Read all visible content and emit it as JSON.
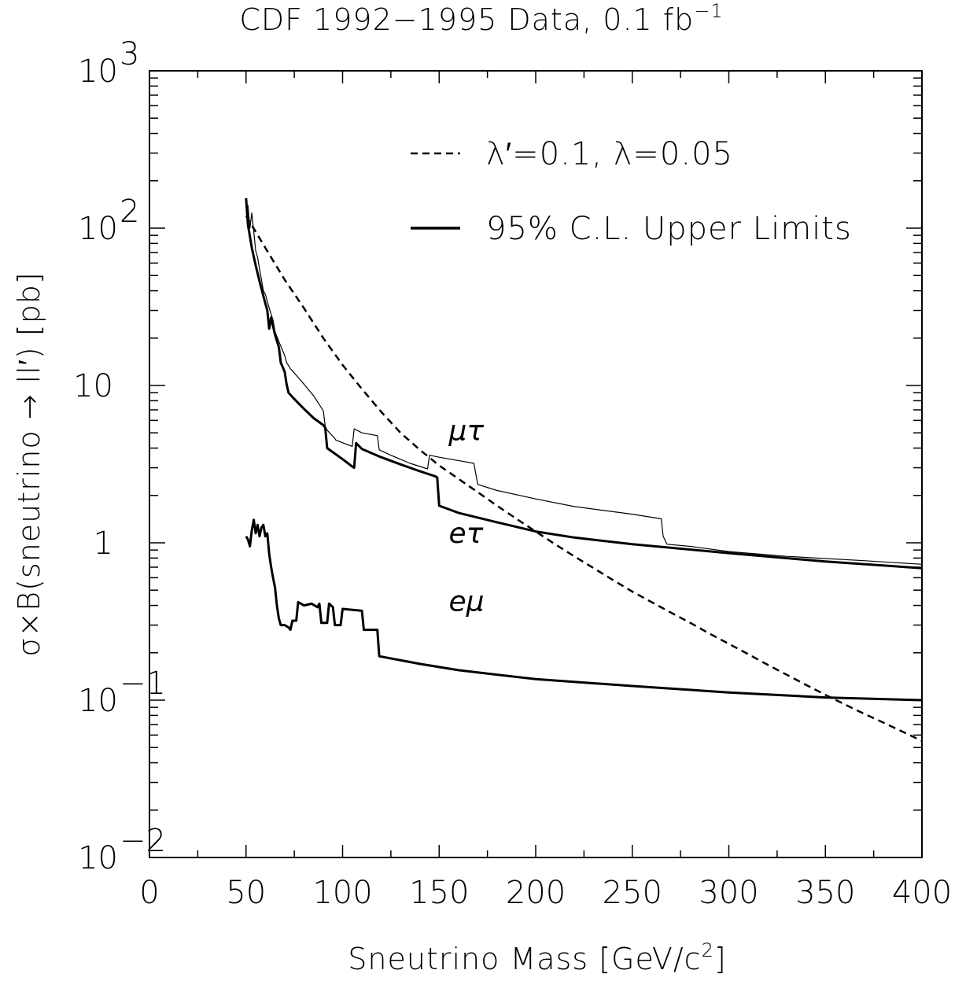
{
  "title": "CDF 1992−1995 Data, 0.1 fb",
  "title_sup": "−1",
  "chart_data": {
    "type": "line",
    "xlabel": "Sneutrino Mass [GeV/c",
    "xlabel_sup": "2",
    "xlabel_tail": "]",
    "ylabel": "σ×B(sneutrino → ll′) [pb]",
    "xlim": [
      0,
      400
    ],
    "ylim": [
      0.01,
      1000
    ],
    "yscale": "log",
    "grid": false,
    "legend_position": "top-right",
    "x_ticks": [
      0,
      50,
      100,
      150,
      200,
      250,
      300,
      350,
      400
    ],
    "x_tick_labels": [
      "0",
      "50",
      "100",
      "150",
      "200",
      "250",
      "300",
      "350",
      "400"
    ],
    "y_ticks": [
      {
        "value": 1000,
        "base": "10",
        "exp": "3"
      },
      {
        "value": 100,
        "base": "10",
        "exp": "2"
      },
      {
        "value": 10,
        "base": "10",
        "exp": ""
      },
      {
        "value": 1,
        "base": "1",
        "exp": ""
      },
      {
        "value": 0.1,
        "base": "10",
        "exp": "−1"
      },
      {
        "value": 0.01,
        "base": "10",
        "exp": "−2"
      }
    ],
    "legend": [
      {
        "label": "λ′=0.1, λ=0.05",
        "style": "dashed"
      },
      {
        "label": "95% C.L. Upper Limits",
        "style": "solid"
      }
    ],
    "series": [
      {
        "name": "λ′=0.1, λ=0.05",
        "style": "dashed",
        "stroke": "#000000",
        "width": 2.5,
        "points": [
          [
            50,
            120
          ],
          [
            60,
            75
          ],
          [
            70,
            47
          ],
          [
            80,
            31
          ],
          [
            90,
            20
          ],
          [
            100,
            13.5
          ],
          [
            110,
            9.5
          ],
          [
            120,
            6.8
          ],
          [
            130,
            5.0
          ],
          [
            140,
            3.9
          ],
          [
            150,
            3.1
          ],
          [
            160,
            2.55
          ],
          [
            170,
            2.1
          ],
          [
            180,
            1.72
          ],
          [
            190,
            1.42
          ],
          [
            200,
            1.18
          ],
          [
            210,
            0.98
          ],
          [
            220,
            0.82
          ],
          [
            230,
            0.69
          ],
          [
            240,
            0.58
          ],
          [
            250,
            0.49
          ],
          [
            260,
            0.42
          ],
          [
            270,
            0.36
          ],
          [
            280,
            0.31
          ],
          [
            290,
            0.265
          ],
          [
            300,
            0.228
          ],
          [
            310,
            0.196
          ],
          [
            320,
            0.168
          ],
          [
            330,
            0.145
          ],
          [
            340,
            0.125
          ],
          [
            350,
            0.108
          ],
          [
            360,
            0.094
          ],
          [
            370,
            0.082
          ],
          [
            380,
            0.072
          ],
          [
            390,
            0.063
          ],
          [
            400,
            0.055
          ]
        ]
      },
      {
        "name": "",
        "style": "solid",
        "stroke": "#000000",
        "width": 1.2,
        "points": [
          [
            51,
            140
          ],
          [
            52,
            100
          ],
          [
            53,
            125
          ],
          [
            54,
            95
          ],
          [
            55,
            72
          ],
          [
            56,
            65
          ],
          [
            57,
            55
          ],
          [
            58,
            47
          ],
          [
            59,
            40
          ],
          [
            60,
            38
          ],
          [
            62,
            31
          ],
          [
            64,
            26
          ],
          [
            65,
            22
          ],
          [
            67,
            19
          ],
          [
            70,
            15.5
          ],
          [
            71,
            14
          ],
          [
            73,
            12.8
          ],
          [
            75,
            12
          ],
          [
            80,
            10.2
          ],
          [
            85,
            8.6
          ],
          [
            90,
            6.9
          ],
          [
            91,
            5.5
          ],
          [
            92,
            5.2
          ],
          [
            96,
            4.6
          ],
          [
            96.5,
            4.5
          ],
          [
            105,
            4.1
          ],
          [
            106,
            5.3
          ],
          [
            110,
            5.0
          ],
          [
            118,
            4.8
          ],
          [
            119,
            3.9
          ],
          [
            125,
            3.6
          ],
          [
            135,
            3.2
          ],
          [
            144,
            2.95
          ],
          [
            145,
            3.6
          ],
          [
            150,
            3.5
          ],
          [
            162,
            3.3
          ],
          [
            168,
            3.2
          ],
          [
            170,
            2.35
          ],
          [
            180,
            2.15
          ],
          [
            200,
            1.9
          ],
          [
            220,
            1.7
          ],
          [
            250,
            1.52
          ],
          [
            265,
            1.42
          ],
          [
            266,
            1.1
          ],
          [
            268,
            0.98
          ],
          [
            280,
            0.95
          ],
          [
            300,
            0.88
          ],
          [
            330,
            0.82
          ],
          [
            370,
            0.77
          ],
          [
            400,
            0.73
          ]
        ]
      },
      {
        "name": "",
        "style": "solid",
        "stroke": "#000000",
        "width": 3,
        "points": [
          [
            50,
            155
          ],
          [
            51,
            105
          ],
          [
            53,
            75
          ],
          [
            55,
            58
          ],
          [
            57,
            46
          ],
          [
            59,
            37
          ],
          [
            61,
            30
          ],
          [
            62,
            23
          ],
          [
            63,
            27
          ],
          [
            65,
            21
          ],
          [
            67,
            17.5
          ],
          [
            68,
            14
          ],
          [
            70,
            12.2
          ],
          [
            71,
            10.2
          ],
          [
            72,
            9.0
          ],
          [
            75,
            8.2
          ],
          [
            80,
            7.1
          ],
          [
            85,
            6.2
          ],
          [
            90,
            5.6
          ],
          [
            91,
            5.4
          ],
          [
            92,
            4.0
          ],
          [
            100,
            3.4
          ],
          [
            105,
            3.05
          ],
          [
            106,
            3.0
          ],
          [
            107,
            4.3
          ],
          [
            110,
            3.95
          ],
          [
            120,
            3.5
          ],
          [
            130,
            3.15
          ],
          [
            140,
            2.85
          ],
          [
            148,
            2.65
          ],
          [
            149,
            2.6
          ],
          [
            150,
            1.72
          ],
          [
            160,
            1.55
          ],
          [
            180,
            1.35
          ],
          [
            200,
            1.18
          ],
          [
            220,
            1.08
          ],
          [
            250,
            0.98
          ],
          [
            300,
            0.86
          ],
          [
            350,
            0.76
          ],
          [
            400,
            0.69
          ]
        ]
      },
      {
        "name": "",
        "style": "solid",
        "stroke": "#000000",
        "width": 3,
        "points": [
          [
            50,
            1.1
          ],
          [
            51,
            1.05
          ],
          [
            52,
            0.95
          ],
          [
            53,
            1.2
          ],
          [
            54,
            1.4
          ],
          [
            55,
            1.15
          ],
          [
            56,
            1.3
          ],
          [
            57,
            1.1
          ],
          [
            58,
            1.25
          ],
          [
            59,
            1.3
          ],
          [
            60,
            1.1
          ],
          [
            61,
            1.15
          ],
          [
            62,
            0.85
          ],
          [
            63,
            0.7
          ],
          [
            64,
            0.6
          ],
          [
            65,
            0.52
          ],
          [
            66,
            0.4
          ],
          [
            67,
            0.33
          ],
          [
            68,
            0.3
          ],
          [
            70,
            0.3
          ],
          [
            72,
            0.29
          ],
          [
            73,
            0.28
          ],
          [
            74,
            0.32
          ],
          [
            76,
            0.32
          ],
          [
            77,
            0.42
          ],
          [
            80,
            0.4
          ],
          [
            84,
            0.41
          ],
          [
            87,
            0.39
          ],
          [
            88,
            0.41
          ],
          [
            89,
            0.31
          ],
          [
            92,
            0.31
          ],
          [
            93,
            0.41
          ],
          [
            95,
            0.39
          ],
          [
            96,
            0.3
          ],
          [
            99,
            0.3
          ],
          [
            100,
            0.38
          ],
          [
            110,
            0.37
          ],
          [
            111,
            0.28
          ],
          [
            118,
            0.28
          ],
          [
            119,
            0.19
          ],
          [
            140,
            0.17
          ],
          [
            160,
            0.155
          ],
          [
            200,
            0.136
          ],
          [
            250,
            0.123
          ],
          [
            300,
            0.112
          ],
          [
            350,
            0.104
          ],
          [
            400,
            0.1
          ]
        ]
      }
    ],
    "annotations": [
      {
        "text": "μτ",
        "x": 155,
        "y": 4.5
      },
      {
        "text": "eτ",
        "x": 155,
        "y": 1.0
      },
      {
        "text": "eμ",
        "x": 155,
        "y": 0.37
      }
    ]
  }
}
